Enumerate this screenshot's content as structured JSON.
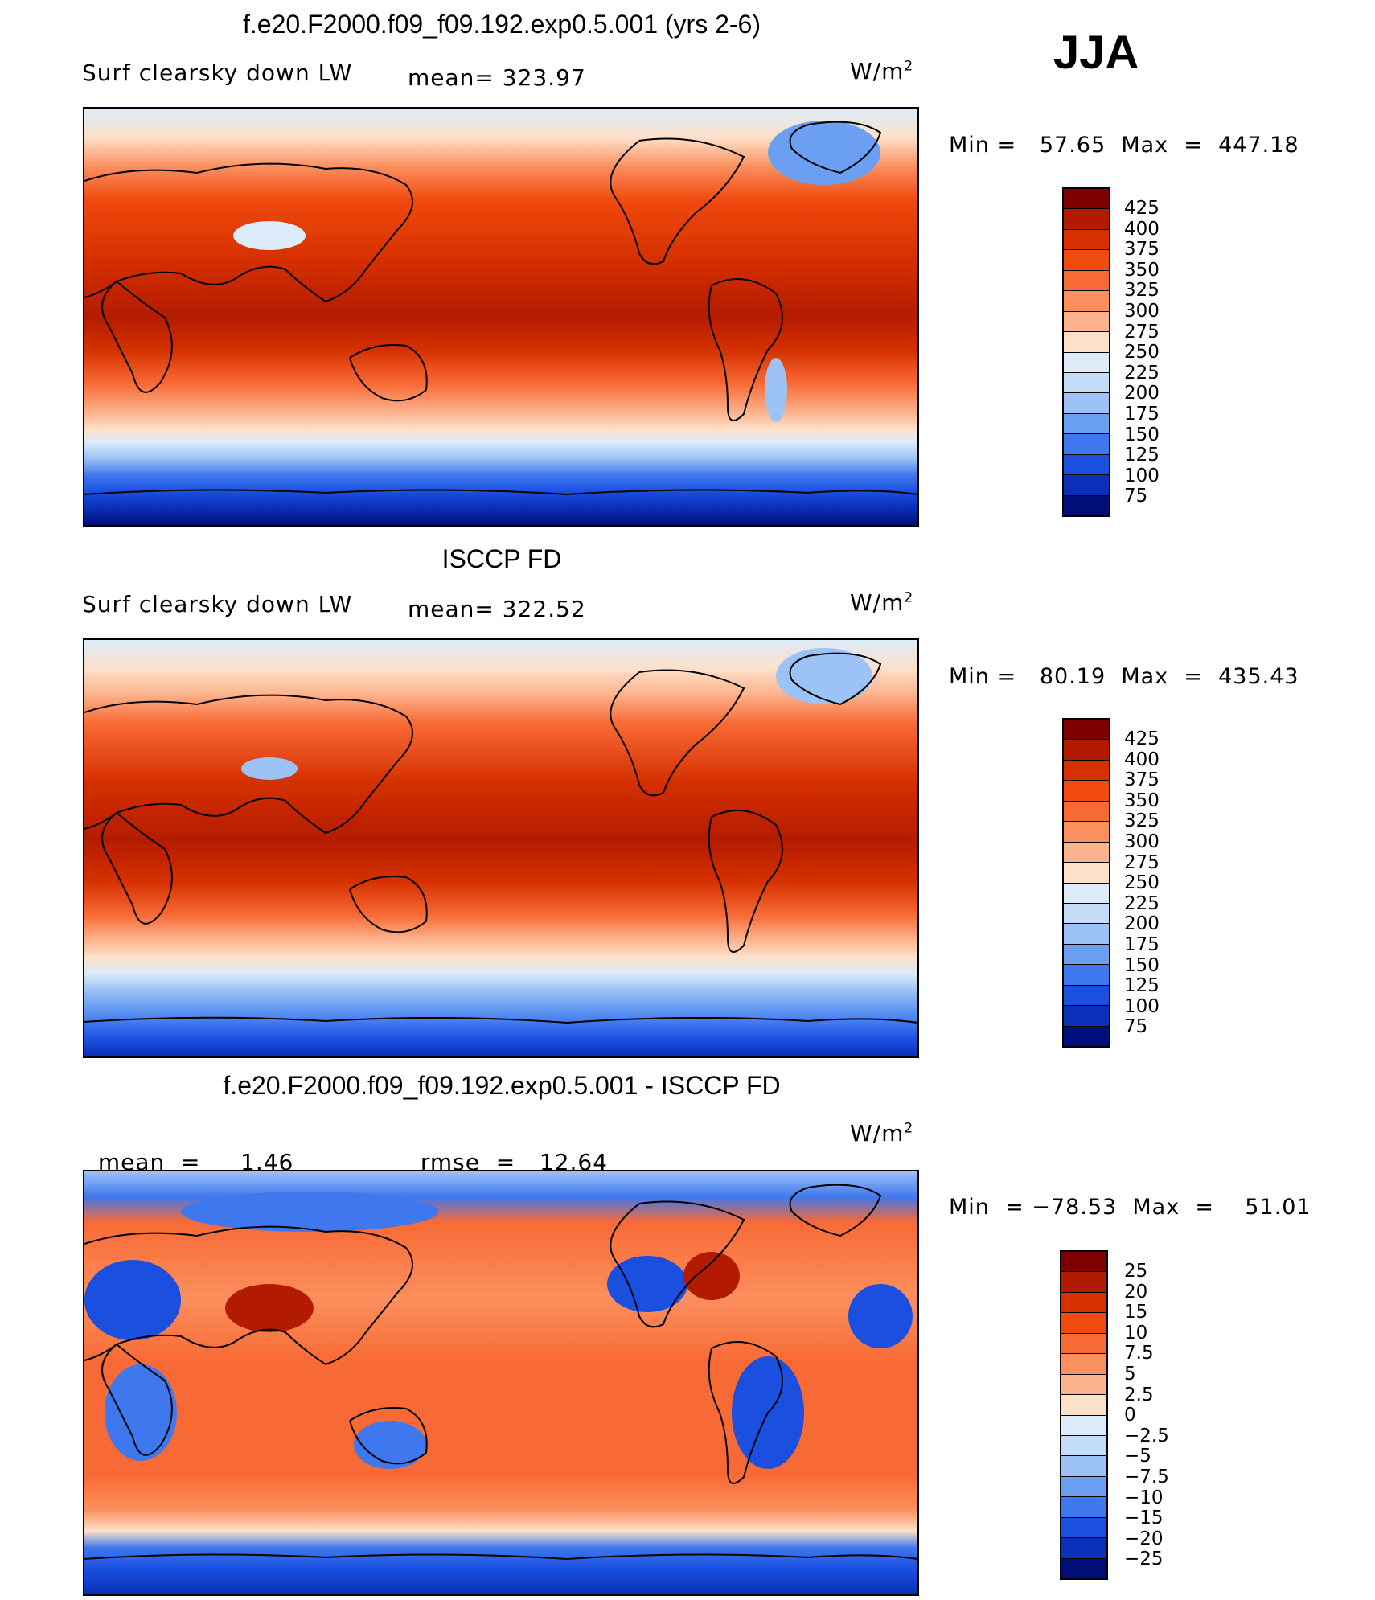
{
  "season": "JJA",
  "panels": [
    {
      "title": "f.e20.F2000.f09_f09.192.exp0.5.001 (yrs 2-6)",
      "left_label": "Surf clearsky down LW",
      "mean_label": "mean=",
      "mean_value": "323.97",
      "unit_base": "W/m",
      "unit_sup": "2",
      "minmax": "Min =   57.65  Max  =  447.18",
      "colorbar_labels": [
        "425",
        "400",
        "375",
        "350",
        "325",
        "300",
        "275",
        "250",
        "225",
        "200",
        "175",
        "150",
        "125",
        "100",
        "75"
      ],
      "colorbar_colors": [
        "#7f0000",
        "#b31b00",
        "#d63000",
        "#f04a0f",
        "#f86a35",
        "#fb8f5e",
        "#fcb38d",
        "#fde0c8",
        "#dcecfa",
        "#c3dcf7",
        "#9dc2f5",
        "#6a9ff2",
        "#3f78ee",
        "#1a4fe0",
        "#0a2fb8",
        "#000e7a"
      ]
    },
    {
      "title": "ISCCP FD",
      "left_label": "Surf clearsky down LW",
      "mean_label": "mean=",
      "mean_value": "322.52",
      "unit_base": "W/m",
      "unit_sup": "2",
      "minmax": "Min =   80.19  Max  =  435.43",
      "colorbar_labels": [
        "425",
        "400",
        "375",
        "350",
        "325",
        "300",
        "275",
        "250",
        "225",
        "200",
        "175",
        "150",
        "125",
        "100",
        "75"
      ],
      "colorbar_colors": [
        "#7f0000",
        "#b31b00",
        "#d63000",
        "#f04a0f",
        "#f86a35",
        "#fb8f5e",
        "#fcb38d",
        "#fde0c8",
        "#dcecfa",
        "#c3dcf7",
        "#9dc2f5",
        "#6a9ff2",
        "#3f78ee",
        "#1a4fe0",
        "#0a2fb8",
        "#000e7a"
      ]
    },
    {
      "title": "f.e20.F2000.f09_f09.192.exp0.5.001 - ISCCP FD",
      "mean_label": "mean  =",
      "mean_value": "1.46",
      "rmse_label": "rmse  =",
      "rmse_value": "12.64",
      "unit_base": "W/m",
      "unit_sup": "2",
      "minmax": "Min  = −78.53  Max  =    51.01",
      "colorbar_labels": [
        "25",
        "20",
        "15",
        "10",
        "7.5",
        "5",
        "2.5",
        "0",
        "−2.5",
        "−5",
        "−7.5",
        "−10",
        "−15",
        "−20",
        "−25"
      ],
      "colorbar_colors": [
        "#7f0000",
        "#b31b00",
        "#d63000",
        "#f04a0f",
        "#f86a35",
        "#fb8f5e",
        "#fcb38d",
        "#fde0c8",
        "#dcecfa",
        "#c3dcf7",
        "#9dc2f5",
        "#6a9ff2",
        "#3f78ee",
        "#1a4fe0",
        "#0a2fb8",
        "#000e7a"
      ]
    }
  ]
}
